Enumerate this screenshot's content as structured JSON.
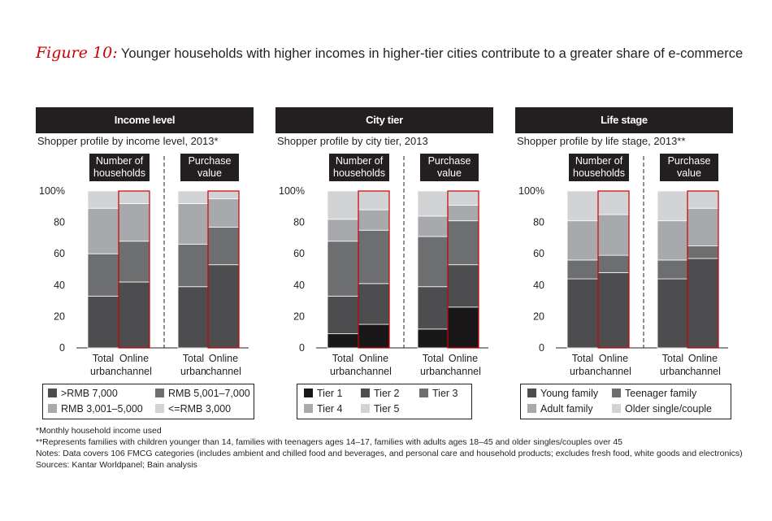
{
  "figure": {
    "label": "Figure 10:",
    "title": "Younger households with higher incomes in higher-tier cities contribute to a greater share of e-commerce"
  },
  "colors": {
    "dark": "#231f20",
    "seg1": "#4d4d4f",
    "seg2": "#6d6e70",
    "seg3": "#a7a9ac",
    "seg4": "#d1d3d4",
    "highlight": "#cc0000"
  },
  "panels": [
    {
      "header": "Income level",
      "subtitle": "Shopper profile by income level, 2013*",
      "group_left": "Number of households",
      "group_right": "Purchase value",
      "legend": [
        {
          "label": ">RMB 7,000",
          "color": "#4d4d4f"
        },
        {
          "label": "RMB 5,001–7,000",
          "color": "#6d6e70"
        },
        {
          "label": "RMB 3,001–5,000",
          "color": "#a7a9ac"
        },
        {
          "label": "<=RMB 3,000",
          "color": "#d1d3d4"
        }
      ]
    },
    {
      "header": "City tier",
      "subtitle": "Shopper profile by city tier, 2013",
      "group_left": "Number of households",
      "group_right": "Purchase value",
      "legend": [
        {
          "label": "Tier 1",
          "color": "#1a1718"
        },
        {
          "label": "Tier 2",
          "color": "#4d4d4f"
        },
        {
          "label": "Tier 3",
          "color": "#6d6e70"
        },
        {
          "label": "Tier 4",
          "color": "#a7a9ac"
        },
        {
          "label": "Tier 5",
          "color": "#d1d3d4"
        }
      ]
    },
    {
      "header": "Life stage",
      "subtitle": "Shopper profile by life stage, 2013**",
      "group_left": "Number of households",
      "group_right": "Purchase value",
      "legend": [
        {
          "label": "Young family",
          "color": "#4d4d4f"
        },
        {
          "label": "Teenager family",
          "color": "#6d6e70"
        },
        {
          "label": "Adult family",
          "color": "#a7a9ac"
        },
        {
          "label": "Older single/couple",
          "color": "#d1d3d4"
        }
      ]
    }
  ],
  "chart_data": [
    {
      "type": "bar",
      "stacked": true,
      "title": "Income level",
      "ylabel": "",
      "xlabel": "",
      "ylim": [
        0,
        100
      ],
      "yticks": [
        "0",
        "20",
        "40",
        "60",
        "80",
        "100%"
      ],
      "categories": [
        "Total urban",
        "Online channel",
        "Total urban",
        "Online channel"
      ],
      "category_lines": [
        [
          "Total",
          "urban"
        ],
        [
          "Online",
          "channel"
        ],
        [
          "Total",
          "urban"
        ],
        [
          "Online",
          "channel"
        ]
      ],
      "highlighted": [
        1,
        3
      ],
      "series": [
        {
          "name": ">RMB 7,000",
          "values": [
            33,
            42,
            39,
            53
          ]
        },
        {
          "name": "RMB 5,001–7,000",
          "values": [
            27,
            26,
            27,
            24
          ]
        },
        {
          "name": "RMB 3,001–5,000",
          "values": [
            29,
            24,
            26,
            18
          ]
        },
        {
          "name": "<=RMB 3,000",
          "values": [
            11,
            8,
            8,
            5
          ]
        }
      ]
    },
    {
      "type": "bar",
      "stacked": true,
      "title": "City tier",
      "ylabel": "",
      "xlabel": "",
      "ylim": [
        0,
        100
      ],
      "yticks": [
        "0",
        "20",
        "40",
        "60",
        "80",
        "100%"
      ],
      "categories": [
        "Total urban",
        "Online channel",
        "Total urban",
        "Online channel"
      ],
      "category_lines": [
        [
          "Total",
          "urban"
        ],
        [
          "Online",
          "channel"
        ],
        [
          "Total",
          "urban"
        ],
        [
          "Online",
          "channel"
        ]
      ],
      "highlighted": [
        1,
        3
      ],
      "series": [
        {
          "name": "Tier 1",
          "values": [
            9,
            15,
            12,
            26
          ]
        },
        {
          "name": "Tier 2",
          "values": [
            24,
            26,
            27,
            27
          ]
        },
        {
          "name": "Tier 3",
          "values": [
            35,
            34,
            32,
            28
          ]
        },
        {
          "name": "Tier 4",
          "values": [
            14,
            13,
            13,
            10
          ]
        },
        {
          "name": "Tier 5",
          "values": [
            18,
            12,
            16,
            9
          ]
        }
      ]
    },
    {
      "type": "bar",
      "stacked": true,
      "title": "Life stage",
      "ylabel": "",
      "xlabel": "",
      "ylim": [
        0,
        100
      ],
      "yticks": [
        "0",
        "20",
        "40",
        "60",
        "80",
        "100%"
      ],
      "categories": [
        "Total urban",
        "Online channel",
        "Total urban",
        "Online channel"
      ],
      "category_lines": [
        [
          "Total",
          "urban"
        ],
        [
          "Online",
          "channel"
        ],
        [
          "Total",
          "urban"
        ],
        [
          "Online",
          "channel"
        ]
      ],
      "highlighted": [
        1,
        3
      ],
      "series": [
        {
          "name": "Young family",
          "values": [
            44,
            48,
            44,
            57
          ]
        },
        {
          "name": "Teenager family",
          "values": [
            12,
            11,
            12,
            8
          ]
        },
        {
          "name": "Adult family",
          "values": [
            25,
            26,
            25,
            24
          ]
        },
        {
          "name": "Older single/couple",
          "values": [
            19,
            15,
            19,
            11
          ]
        }
      ]
    }
  ],
  "footnotes": [
    "*Monthly household income used",
    "**Represents families with children younger than 14, families with teenagers ages 14–17, families with adults ages 18–45 and older singles/couples over 45",
    "Notes: Data covers 106 FMCG categories (includes ambient and chilled food and beverages, and personal care and household products; excludes fresh food, white goods and electronics)",
    "Sources: Kantar Worldpanel; Bain analysis"
  ]
}
